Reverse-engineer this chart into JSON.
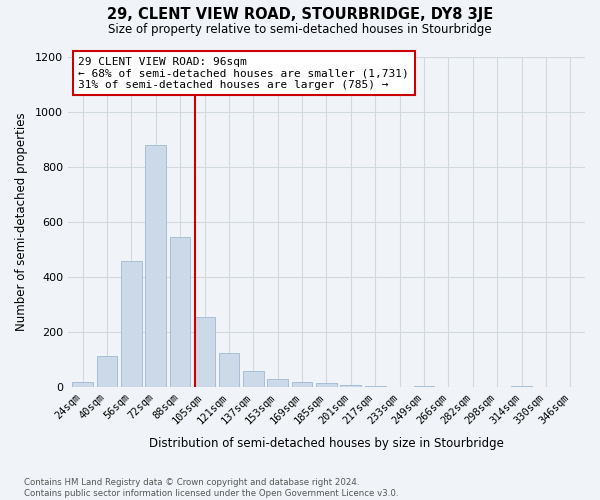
{
  "title": "29, CLENT VIEW ROAD, STOURBRIDGE, DY8 3JE",
  "subtitle": "Size of property relative to semi-detached houses in Stourbridge",
  "xlabel": "Distribution of semi-detached houses by size in Stourbridge",
  "ylabel": "Number of semi-detached properties",
  "annotation_line1": "29 CLENT VIEW ROAD: 96sqm",
  "annotation_line2": "← 68% of semi-detached houses are smaller (1,731)",
  "annotation_line3": "31% of semi-detached houses are larger (785) →",
  "categories": [
    "24sqm",
    "40sqm",
    "56sqm",
    "72sqm",
    "88sqm",
    "105sqm",
    "121sqm",
    "137sqm",
    "153sqm",
    "169sqm",
    "185sqm",
    "201sqm",
    "217sqm",
    "233sqm",
    "249sqm",
    "266sqm",
    "282sqm",
    "298sqm",
    "314sqm",
    "330sqm",
    "346sqm"
  ],
  "values": [
    20,
    115,
    460,
    880,
    545,
    255,
    125,
    60,
    30,
    20,
    15,
    10,
    5,
    0,
    5,
    0,
    0,
    0,
    5,
    0,
    0
  ],
  "bar_color": "#ccd9e8",
  "bar_edge_color": "#a0b8d0",
  "vline_color": "#cc0000",
  "vline_x": 4.62,
  "annotation_box_edgecolor": "#cc0000",
  "ylim": [
    0,
    1200
  ],
  "yticks": [
    0,
    200,
    400,
    600,
    800,
    1000,
    1200
  ],
  "footer_line1": "Contains HM Land Registry data © Crown copyright and database right 2024.",
  "footer_line2": "Contains public sector information licensed under the Open Government Licence v3.0.",
  "bg_color": "#f0f4f8",
  "grid_color": "#d0d8e0"
}
